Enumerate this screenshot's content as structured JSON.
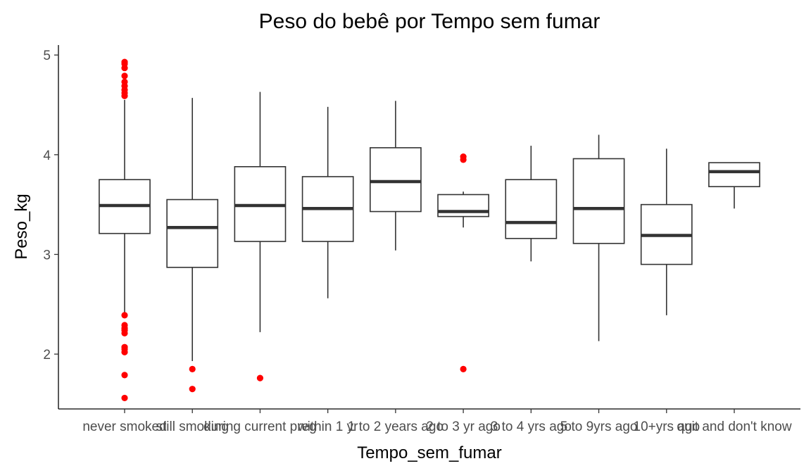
{
  "chart_data": {
    "type": "boxplot",
    "title": "Peso do bebê por Tempo sem fumar",
    "xlabel": "Tempo_sem_fumar",
    "ylabel": "Peso_kg",
    "ylim": [
      1.45,
      5.1
    ],
    "yticks": [
      2,
      3,
      4,
      5
    ],
    "ytick_labels": [
      "2",
      "3",
      "4",
      "5"
    ],
    "grid": false,
    "outlier_color": "#ff0000",
    "box_color": "#333333",
    "categories": [
      "never smoked",
      "still smoking",
      "during current preg",
      "within 1 yr",
      "1 to 2 years ago",
      "2 to 3 yr ago",
      "3 to 4 yrs ago",
      "5 to 9yrs ago",
      "10+yrs ago",
      "quit and don't know"
    ],
    "boxes": [
      {
        "whisker_low": 2.41,
        "q1": 3.21,
        "median": 3.49,
        "q3": 3.75,
        "whisker_high": 4.55,
        "outliers": [
          4.93,
          4.91,
          4.87,
          4.79,
          4.73,
          4.69,
          4.65,
          4.62,
          4.59,
          2.39,
          2.29,
          2.26,
          2.24,
          2.21,
          2.07,
          2.05,
          2.02,
          1.79,
          1.56
        ]
      },
      {
        "whisker_low": 1.93,
        "q1": 2.87,
        "median": 3.27,
        "q3": 3.55,
        "whisker_high": 4.57,
        "outliers": [
          1.85,
          1.65
        ]
      },
      {
        "whisker_low": 2.22,
        "q1": 3.13,
        "median": 3.49,
        "q3": 3.88,
        "whisker_high": 4.63,
        "outliers": [
          1.76
        ]
      },
      {
        "whisker_low": 2.56,
        "q1": 3.13,
        "median": 3.46,
        "q3": 3.78,
        "whisker_high": 4.48,
        "outliers": []
      },
      {
        "whisker_low": 3.04,
        "q1": 3.43,
        "median": 3.73,
        "q3": 4.07,
        "whisker_high": 4.54,
        "outliers": []
      },
      {
        "whisker_low": 3.27,
        "q1": 3.38,
        "median": 3.43,
        "q3": 3.6,
        "whisker_high": 3.63,
        "outliers": [
          3.98,
          3.95,
          1.85
        ]
      },
      {
        "whisker_low": 2.93,
        "q1": 3.16,
        "median": 3.32,
        "q3": 3.75,
        "whisker_high": 4.09,
        "outliers": []
      },
      {
        "whisker_low": 2.13,
        "q1": 3.11,
        "median": 3.46,
        "q3": 3.96,
        "whisker_high": 4.2,
        "outliers": []
      },
      {
        "whisker_low": 2.39,
        "q1": 2.9,
        "median": 3.19,
        "q3": 3.5,
        "whisker_high": 4.06,
        "outliers": []
      },
      {
        "whisker_low": 3.46,
        "q1": 3.68,
        "median": 3.83,
        "q3": 3.92,
        "whisker_high": 3.92,
        "outliers": []
      }
    ]
  }
}
